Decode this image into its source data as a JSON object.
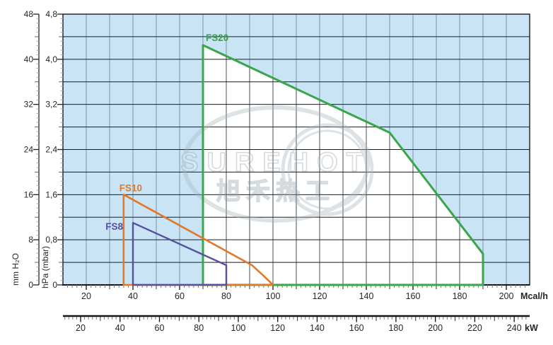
{
  "chart_data": {
    "type": "area",
    "description": "Burner working field diagram: fan pressure (hPa / mm H2O) versus heat output (Mcal/h and kW)",
    "x_axis": {
      "unit": "Mcal/h",
      "min": 10,
      "max": 210,
      "grid_step": 10,
      "ticks": [
        20,
        40,
        60,
        80,
        100,
        120,
        140,
        160,
        180,
        200
      ],
      "tick_labels": [
        "20",
        "40",
        "60",
        "80",
        "100",
        "120",
        "140",
        "160",
        "180",
        "200"
      ]
    },
    "x_axis_secondary": {
      "unit": "kW",
      "min": 11,
      "max": 247,
      "mcal_to_kw": 1.163,
      "ticks": [
        20,
        40,
        60,
        80,
        100,
        120,
        140,
        160,
        180,
        200,
        220,
        240
      ],
      "tick_labels": [
        "20",
        "40",
        "60",
        "80",
        "100",
        "120",
        "140",
        "160",
        "180",
        "200",
        "220",
        "240"
      ]
    },
    "y_axis_primary": {
      "title": "hPa (mbar)",
      "min": 0,
      "max": 4.8,
      "grid_step": 0.4,
      "ticks": [
        0,
        0.8,
        1.6,
        2.4,
        3.2,
        4.0,
        4.8
      ],
      "tick_labels": [
        "0",
        "0,8",
        "1,6",
        "2,4",
        "3,2",
        "4,0",
        "4,8"
      ]
    },
    "y_axis_mm": {
      "title": "mm H₂O",
      "min": 0,
      "max": 48,
      "ticks": [
        0,
        8,
        16,
        24,
        32,
        40,
        48
      ],
      "tick_labels": [
        "0",
        "8",
        "16",
        "24",
        "32",
        "40",
        "48"
      ]
    },
    "series": [
      {
        "name": "FS20",
        "color": "#3aa64b",
        "area_fill": "#ffffff",
        "points": [
          [
            70,
            0
          ],
          [
            70,
            4.25
          ],
          [
            150,
            2.7
          ],
          [
            190,
            0.55
          ],
          [
            190,
            0
          ]
        ]
      },
      {
        "name": "FS10",
        "color": "#e1782a",
        "area_fill": null,
        "points": [
          [
            36,
            0
          ],
          [
            36,
            1.6
          ],
          [
            91,
            0.35
          ],
          [
            96,
            0.16
          ],
          [
            98.5,
            0.06
          ],
          [
            100,
            0
          ]
        ]
      },
      {
        "name": "FS8",
        "color": "#57509f",
        "area_fill": null,
        "points": [
          [
            40,
            0
          ],
          [
            40,
            1.1
          ],
          [
            80,
            0.35
          ],
          [
            80,
            0
          ]
        ]
      }
    ],
    "field_background": "#c9e5f5",
    "grid": {
      "horizontal_color": "#1b1b24",
      "vertical_color": "#7d93a3",
      "vertical_color_in_field": "#454f58"
    }
  },
  "watermark": {
    "line1": "SUREHOT",
    "line2": "旭禾热工"
  }
}
